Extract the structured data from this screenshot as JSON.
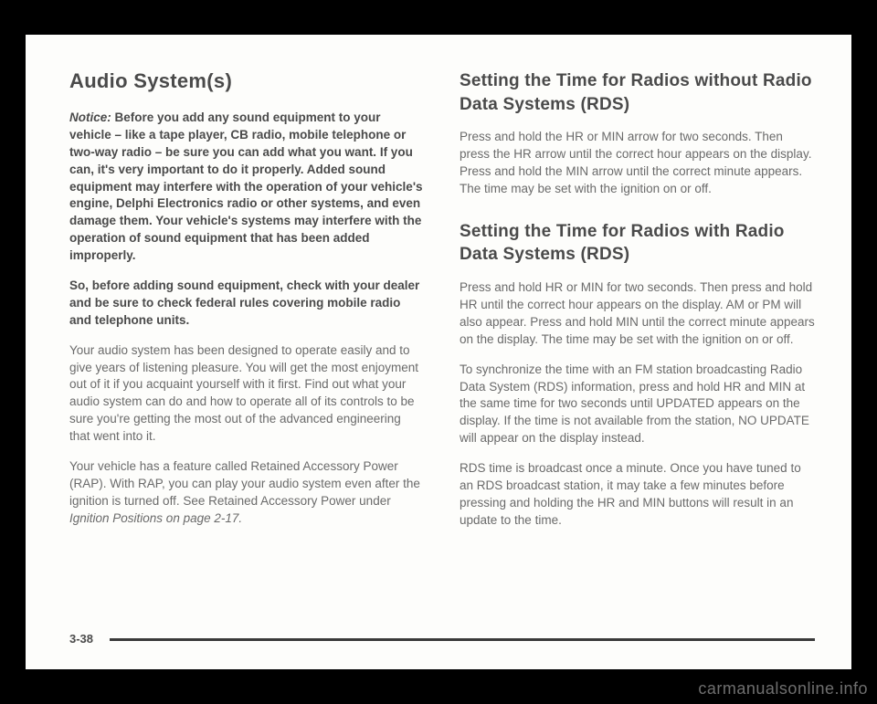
{
  "left": {
    "heading": "Audio System(s)",
    "notice_label": "Notice:",
    "notice_text": " Before you add any sound equipment to your vehicle – like a tape player, CB radio, mobile telephone or two-way radio – be sure you can add what you want. If you can, it's very important to do it properly. Added sound equipment may interfere with the operation of your vehicle's engine, Delphi Electronics radio or other systems, and even damage them. Your vehicle's systems may interfere with the operation of sound equipment that has been added improperly.",
    "bold_para": "So, before adding sound equipment, check with your dealer and be sure to check federal rules covering mobile radio and telephone units.",
    "para1": "Your audio system has been designed to operate easily and to give years of listening pleasure. You will get the most enjoyment out of it if you acquaint yourself with it first. Find out what your audio system can do and how to operate all of its controls to be sure you're getting the most out of the advanced engineering that went into it.",
    "para2_a": "Your vehicle has a feature called Retained Accessory Power (RAP). With RAP, you can play your audio system even after the ignition is turned off. See Retained Accessory Power under ",
    "para2_italic": "Ignition Positions on page 2-17.",
    "para2_b": ""
  },
  "right": {
    "heading1": "Setting the Time for Radios without Radio Data Systems (RDS)",
    "para1": "Press and hold the HR or MIN arrow for two seconds. Then press the HR arrow until the correct hour appears on the display. Press and hold the MIN arrow until the correct minute appears. The time may be set with the ignition on or off.",
    "heading2": "Setting the Time for Radios with Radio Data Systems (RDS)",
    "para2": "Press and hold HR or MIN for two seconds. Then press and hold HR until the correct hour appears on the display. AM or PM will also appear. Press and hold MIN until the correct minute appears on the display. The time may be set with the ignition on or off.",
    "para3": "To synchronize the time with an FM station broadcasting Radio Data System (RDS) information, press and hold HR and MIN at the same time for two seconds until UPDATED appears on the display. If the time is not available from the station, NO UPDATE will appear on the display instead.",
    "para4": "RDS time is broadcast once a minute. Once you have tuned to an RDS broadcast station, it may take a few minutes before pressing and holding the HR and MIN buttons will result in an update to the time."
  },
  "page_number": "3-38",
  "watermark": "carmanualsonline.info"
}
